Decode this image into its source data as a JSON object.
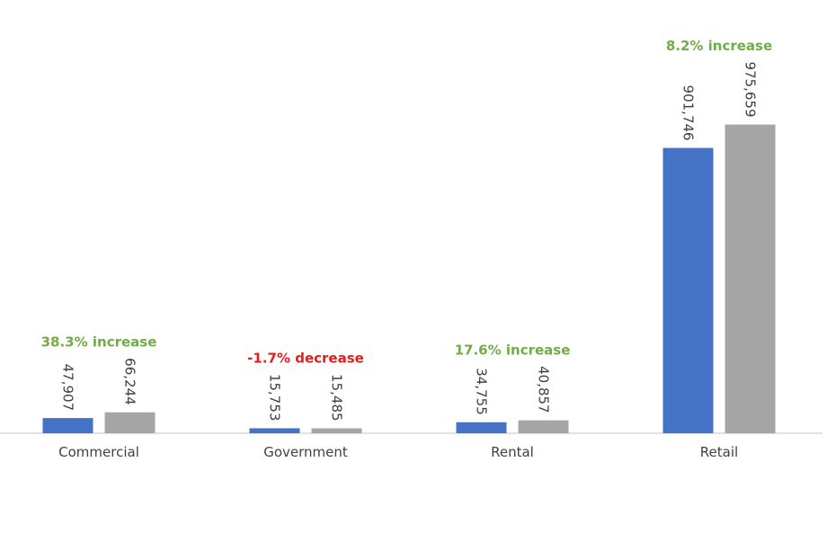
{
  "chart_data": {
    "type": "bar",
    "categories": [
      "Commercial",
      "Government",
      "Rental",
      "Retail"
    ],
    "series": [
      {
        "values": [
          47907,
          15753,
          34755,
          901746
        ],
        "color": "#4472C4"
      },
      {
        "values": [
          66244,
          15485,
          40857,
          975659
        ],
        "color": "#A5A5A5"
      }
    ],
    "value_labels": [
      [
        "47,907",
        "15,753",
        "34,755",
        "901,746"
      ],
      [
        "66,244",
        "15,485",
        "40,857",
        "975,659"
      ]
    ],
    "annotations": [
      {
        "text": "38.3% increase",
        "color": "#70AD47"
      },
      {
        "text": "-1.7% decrease",
        "color": "#E02020"
      },
      {
        "text": "17.6% increase",
        "color": "#70AD47"
      },
      {
        "text": "8.2% increase",
        "color": "#70AD47"
      }
    ],
    "ylim": [
      0,
      1000000
    ],
    "grid": false,
    "axis_color": "#D9D9D9"
  }
}
